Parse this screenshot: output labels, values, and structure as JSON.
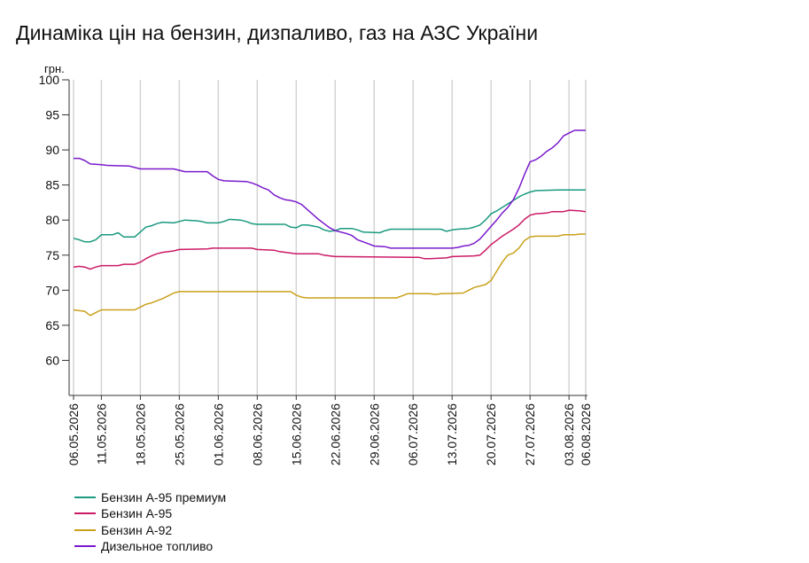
{
  "title": "Динаміка цін на бензин, дизпаливо, газ на АЗС України",
  "chart_data": {
    "type": "line",
    "title": "Динаміка цін на бензин, дизпаливо, газ на АЗС України",
    "ylabel": "грн.",
    "ylim": [
      55,
      100
    ],
    "yticks": [
      60,
      65,
      70,
      75,
      80,
      85,
      90,
      95,
      100
    ],
    "xlim": [
      "2026-05-06",
      "2026-08-06"
    ],
    "x_tick_labels": [
      "06.05.2026",
      "11.05.2026",
      "18.05.2026",
      "25.05.2026",
      "01.06.2026",
      "08.06.2026",
      "15.06.2026",
      "22.06.2026",
      "29.06.2026",
      "06.07.2026",
      "13.07.2026",
      "20.07.2026",
      "27.07.2026",
      "03.08.2026",
      "06.08.2026"
    ],
    "x_tick_dates": [
      "2026-05-06",
      "2026-05-11",
      "2026-05-18",
      "2026-05-25",
      "2026-06-01",
      "2026-06-08",
      "2026-06-15",
      "2026-06-22",
      "2026-06-29",
      "2026-07-06",
      "2026-07-13",
      "2026-07-20",
      "2026-07-27",
      "2026-08-03",
      "2026-08-06"
    ],
    "grid": "vertical",
    "legend_position": "bottom-left",
    "series": [
      {
        "name": "Бензин А-95 премиум",
        "color": "#1a9a7f",
        "points": [
          [
            "2026-05-06",
            77.4
          ],
          [
            "2026-05-07",
            77.2
          ],
          [
            "2026-05-08",
            76.9
          ],
          [
            "2026-05-09",
            76.9
          ],
          [
            "2026-05-10",
            77.2
          ],
          [
            "2026-05-11",
            77.9
          ],
          [
            "2026-05-13",
            77.9
          ],
          [
            "2026-05-14",
            78.2
          ],
          [
            "2026-05-15",
            77.6
          ],
          [
            "2026-05-17",
            77.6
          ],
          [
            "2026-05-18",
            78.3
          ],
          [
            "2026-05-19",
            79.0
          ],
          [
            "2026-05-20",
            79.2
          ],
          [
            "2026-05-21",
            79.5
          ],
          [
            "2026-05-22",
            79.7
          ],
          [
            "2026-05-24",
            79.6
          ],
          [
            "2026-05-25",
            79.8
          ],
          [
            "2026-05-26",
            80.0
          ],
          [
            "2026-05-28",
            79.9
          ],
          [
            "2026-05-29",
            79.8
          ],
          [
            "2026-05-30",
            79.6
          ],
          [
            "2026-06-01",
            79.6
          ],
          [
            "2026-06-02",
            79.8
          ],
          [
            "2026-06-03",
            80.1
          ],
          [
            "2026-06-05",
            80.0
          ],
          [
            "2026-06-06",
            79.8
          ],
          [
            "2026-06-07",
            79.5
          ],
          [
            "2026-06-08",
            79.4
          ],
          [
            "2026-06-13",
            79.4
          ],
          [
            "2026-06-14",
            79.0
          ],
          [
            "2026-06-15",
            78.9
          ],
          [
            "2026-06-16",
            79.3
          ],
          [
            "2026-06-17",
            79.3
          ],
          [
            "2026-06-19",
            79.0
          ],
          [
            "2026-06-20",
            78.6
          ],
          [
            "2026-06-21",
            78.4
          ],
          [
            "2026-06-22",
            78.5
          ],
          [
            "2026-06-23",
            78.8
          ],
          [
            "2026-06-25",
            78.8
          ],
          [
            "2026-06-26",
            78.6
          ],
          [
            "2026-06-27",
            78.3
          ],
          [
            "2026-06-30",
            78.2
          ],
          [
            "2026-07-01",
            78.5
          ],
          [
            "2026-07-02",
            78.7
          ],
          [
            "2026-07-11",
            78.7
          ],
          [
            "2026-07-12",
            78.4
          ],
          [
            "2026-07-13",
            78.6
          ],
          [
            "2026-07-14",
            78.7
          ],
          [
            "2026-07-16",
            78.8
          ],
          [
            "2026-07-17",
            79.0
          ],
          [
            "2026-07-18",
            79.3
          ],
          [
            "2026-07-19",
            80.0
          ],
          [
            "2026-07-20",
            80.9
          ],
          [
            "2026-07-21",
            81.3
          ],
          [
            "2026-07-22",
            81.8
          ],
          [
            "2026-07-23",
            82.3
          ],
          [
            "2026-07-24",
            82.8
          ],
          [
            "2026-07-25",
            83.3
          ],
          [
            "2026-07-26",
            83.7
          ],
          [
            "2026-07-27",
            84.0
          ],
          [
            "2026-07-28",
            84.2
          ],
          [
            "2026-08-01",
            84.3
          ],
          [
            "2026-08-06",
            84.3
          ]
        ]
      },
      {
        "name": "Бензин А-95",
        "color": "#cc1a66",
        "points": [
          [
            "2026-05-06",
            73.3
          ],
          [
            "2026-05-07",
            73.4
          ],
          [
            "2026-05-08",
            73.3
          ],
          [
            "2026-05-09",
            73.0
          ],
          [
            "2026-05-10",
            73.3
          ],
          [
            "2026-05-11",
            73.5
          ],
          [
            "2026-05-14",
            73.5
          ],
          [
            "2026-05-15",
            73.7
          ],
          [
            "2026-05-17",
            73.7
          ],
          [
            "2026-05-18",
            74.0
          ],
          [
            "2026-05-19",
            74.5
          ],
          [
            "2026-05-20",
            74.9
          ],
          [
            "2026-05-21",
            75.2
          ],
          [
            "2026-05-22",
            75.4
          ],
          [
            "2026-05-24",
            75.6
          ],
          [
            "2026-05-25",
            75.8
          ],
          [
            "2026-05-30",
            75.9
          ],
          [
            "2026-05-31",
            76.0
          ],
          [
            "2026-06-07",
            76.0
          ],
          [
            "2026-06-08",
            75.8
          ],
          [
            "2026-06-11",
            75.7
          ],
          [
            "2026-06-12",
            75.5
          ],
          [
            "2026-06-14",
            75.3
          ],
          [
            "2026-06-15",
            75.2
          ],
          [
            "2026-06-19",
            75.2
          ],
          [
            "2026-06-20",
            75.0
          ],
          [
            "2026-06-21",
            74.9
          ],
          [
            "2026-06-22",
            74.8
          ],
          [
            "2026-07-06",
            74.7
          ],
          [
            "2026-07-07",
            74.7
          ],
          [
            "2026-07-08",
            74.5
          ],
          [
            "2026-07-09",
            74.5
          ],
          [
            "2026-07-12",
            74.6
          ],
          [
            "2026-07-13",
            74.8
          ],
          [
            "2026-07-17",
            74.9
          ],
          [
            "2026-07-18",
            75.0
          ],
          [
            "2026-07-19",
            75.7
          ],
          [
            "2026-07-20",
            76.5
          ],
          [
            "2026-07-21",
            77.1
          ],
          [
            "2026-07-22",
            77.7
          ],
          [
            "2026-07-23",
            78.2
          ],
          [
            "2026-07-24",
            78.7
          ],
          [
            "2026-07-25",
            79.3
          ],
          [
            "2026-07-26",
            80.1
          ],
          [
            "2026-07-27",
            80.7
          ],
          [
            "2026-07-28",
            80.9
          ],
          [
            "2026-07-30",
            81.0
          ],
          [
            "2026-07-31",
            81.2
          ],
          [
            "2026-08-02",
            81.2
          ],
          [
            "2026-08-03",
            81.4
          ],
          [
            "2026-08-05",
            81.3
          ],
          [
            "2026-08-06",
            81.2
          ]
        ]
      },
      {
        "name": "Бензин А-92",
        "color": "#c9a11a",
        "points": [
          [
            "2026-05-06",
            67.2
          ],
          [
            "2026-05-08",
            67.0
          ],
          [
            "2026-05-09",
            66.4
          ],
          [
            "2026-05-10",
            66.8
          ],
          [
            "2026-05-11",
            67.2
          ],
          [
            "2026-05-17",
            67.2
          ],
          [
            "2026-05-18",
            67.6
          ],
          [
            "2026-05-19",
            68.0
          ],
          [
            "2026-05-20",
            68.2
          ],
          [
            "2026-05-21",
            68.5
          ],
          [
            "2026-05-22",
            68.8
          ],
          [
            "2026-05-23",
            69.2
          ],
          [
            "2026-05-24",
            69.6
          ],
          [
            "2026-05-25",
            69.8
          ],
          [
            "2026-06-14",
            69.8
          ],
          [
            "2026-06-15",
            69.3
          ],
          [
            "2026-06-16",
            69.0
          ],
          [
            "2026-06-17",
            68.9
          ],
          [
            "2026-07-03",
            68.9
          ],
          [
            "2026-07-04",
            69.2
          ],
          [
            "2026-07-05",
            69.5
          ],
          [
            "2026-07-09",
            69.5
          ],
          [
            "2026-07-10",
            69.4
          ],
          [
            "2026-07-11",
            69.5
          ],
          [
            "2026-07-15",
            69.6
          ],
          [
            "2026-07-16",
            70.0
          ],
          [
            "2026-07-17",
            70.4
          ],
          [
            "2026-07-19",
            70.8
          ],
          [
            "2026-07-20",
            71.4
          ],
          [
            "2026-07-21",
            72.7
          ],
          [
            "2026-07-22",
            74.0
          ],
          [
            "2026-07-23",
            75.0
          ],
          [
            "2026-07-24",
            75.3
          ],
          [
            "2026-07-25",
            76.0
          ],
          [
            "2026-07-26",
            77.1
          ],
          [
            "2026-07-27",
            77.6
          ],
          [
            "2026-07-28",
            77.7
          ],
          [
            "2026-08-01",
            77.7
          ],
          [
            "2026-08-02",
            77.9
          ],
          [
            "2026-08-04",
            77.9
          ],
          [
            "2026-08-05",
            78.0
          ],
          [
            "2026-08-06",
            78.0
          ]
        ]
      },
      {
        "name": "Дизельное топливо",
        "color": "#7a1acc",
        "points": [
          [
            "2026-05-06",
            88.8
          ],
          [
            "2026-05-07",
            88.8
          ],
          [
            "2026-05-08",
            88.5
          ],
          [
            "2026-05-09",
            88.0
          ],
          [
            "2026-05-11",
            87.9
          ],
          [
            "2026-05-12",
            87.8
          ],
          [
            "2026-05-16",
            87.7
          ],
          [
            "2026-05-17",
            87.5
          ],
          [
            "2026-05-18",
            87.3
          ],
          [
            "2026-05-24",
            87.3
          ],
          [
            "2026-05-25",
            87.1
          ],
          [
            "2026-05-26",
            86.9
          ],
          [
            "2026-05-30",
            86.9
          ],
          [
            "2026-05-31",
            86.3
          ],
          [
            "2026-06-01",
            85.8
          ],
          [
            "2026-06-02",
            85.6
          ],
          [
            "2026-06-06",
            85.5
          ],
          [
            "2026-06-07",
            85.3
          ],
          [
            "2026-06-08",
            85.0
          ],
          [
            "2026-06-09",
            84.6
          ],
          [
            "2026-06-10",
            84.3
          ],
          [
            "2026-06-11",
            83.6
          ],
          [
            "2026-06-12",
            83.2
          ],
          [
            "2026-06-13",
            82.9
          ],
          [
            "2026-06-14",
            82.8
          ],
          [
            "2026-06-15",
            82.6
          ],
          [
            "2026-06-16",
            82.2
          ],
          [
            "2026-06-17",
            81.5
          ],
          [
            "2026-06-18",
            80.8
          ],
          [
            "2026-06-19",
            80.1
          ],
          [
            "2026-06-20",
            79.5
          ],
          [
            "2026-06-21",
            78.9
          ],
          [
            "2026-06-22",
            78.5
          ],
          [
            "2026-06-24",
            78.1
          ],
          [
            "2026-06-25",
            77.8
          ],
          [
            "2026-06-26",
            77.2
          ],
          [
            "2026-06-27",
            76.9
          ],
          [
            "2026-06-28",
            76.6
          ],
          [
            "2026-06-29",
            76.3
          ],
          [
            "2026-07-01",
            76.2
          ],
          [
            "2026-07-02",
            76.0
          ],
          [
            "2026-07-13",
            76.0
          ],
          [
            "2026-07-14",
            76.1
          ],
          [
            "2026-07-15",
            76.3
          ],
          [
            "2026-07-16",
            76.4
          ],
          [
            "2026-07-17",
            76.7
          ],
          [
            "2026-07-18",
            77.3
          ],
          [
            "2026-07-19",
            78.2
          ],
          [
            "2026-07-20",
            79.1
          ],
          [
            "2026-07-21",
            80.0
          ],
          [
            "2026-07-22",
            81.0
          ],
          [
            "2026-07-23",
            81.8
          ],
          [
            "2026-07-24",
            82.9
          ],
          [
            "2026-07-25",
            84.5
          ],
          [
            "2026-07-26",
            86.5
          ],
          [
            "2026-07-27",
            88.3
          ],
          [
            "2026-07-28",
            88.6
          ],
          [
            "2026-07-29",
            89.1
          ],
          [
            "2026-07-30",
            89.8
          ],
          [
            "2026-07-31",
            90.3
          ],
          [
            "2026-08-01",
            91.0
          ],
          [
            "2026-08-02",
            92.0
          ],
          [
            "2026-08-03",
            92.4
          ],
          [
            "2026-08-04",
            92.8
          ],
          [
            "2026-08-06",
            92.8
          ]
        ]
      }
    ]
  }
}
